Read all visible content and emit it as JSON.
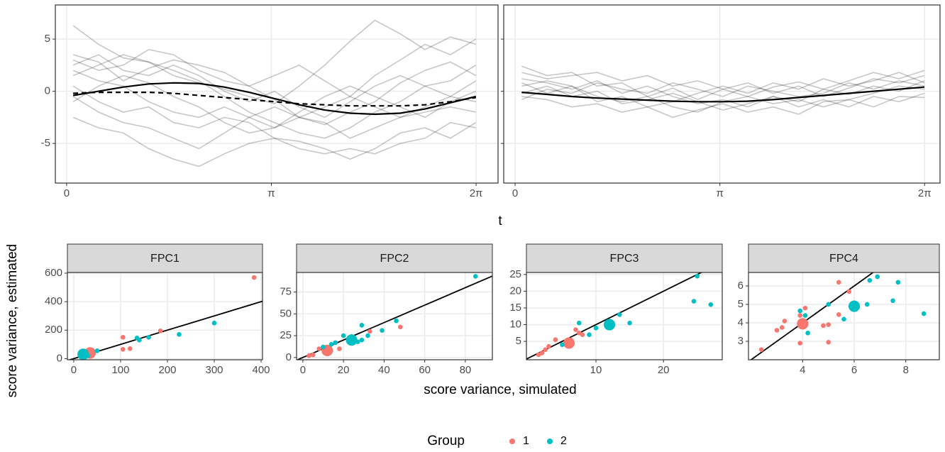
{
  "chart_data": [
    {
      "type": "line",
      "xlim": [
        -0.173,
        6.62
      ],
      "ylim": [
        -8.8,
        8.27
      ],
      "xticks": [
        0,
        {
          "value": 3.14159,
          "label": "π"
        },
        {
          "value": 6.28319,
          "label": "2π"
        }
      ],
      "yticks": [
        -5,
        0,
        5
      ],
      "show_ytick_labels": true,
      "grid": true,
      "x": [
        0.1,
        0.49,
        0.87,
        1.26,
        1.64,
        2.03,
        2.42,
        2.8,
        3.19,
        3.57,
        3.96,
        4.35,
        4.73,
        5.12,
        5.5,
        5.89,
        6.28
      ],
      "series": [
        {
          "color": "#000000",
          "opacity": 0.22,
          "dash": "solid",
          "values": [
            6.3,
            4.5,
            3.2,
            2.8,
            1.5,
            0.8,
            0.2,
            -0.5,
            -1.2,
            0.5,
            2.5,
            4.8,
            6.8,
            5.5,
            4.0,
            5.2,
            4.5
          ]
        },
        {
          "color": "#000000",
          "opacity": 0.22,
          "dash": "solid",
          "values": [
            3.5,
            2.8,
            1.0,
            2.2,
            3.0,
            2.5,
            1.8,
            0.5,
            -0.8,
            -2.5,
            -3.2,
            -2.0,
            -1.0,
            0.8,
            2.0,
            2.8,
            1.5
          ]
        },
        {
          "color": "#000000",
          "opacity": 0.22,
          "dash": "solid",
          "values": [
            -2.5,
            -3.5,
            -4.0,
            -5.5,
            -6.5,
            -7.2,
            -6.0,
            -5.0,
            -4.5,
            -4.8,
            -5.5,
            -6.5,
            -5.5,
            -4.0,
            -3.5,
            -4.5,
            -3.0
          ]
        },
        {
          "color": "#000000",
          "opacity": 0.22,
          "dash": "solid",
          "values": [
            1.5,
            2.5,
            3.5,
            2.8,
            2.0,
            1.0,
            -0.5,
            -2.0,
            -3.0,
            -4.0,
            -4.5,
            -3.5,
            -2.0,
            -1.0,
            0.5,
            1.0,
            2.5
          ]
        },
        {
          "color": "#000000",
          "opacity": 0.22,
          "dash": "solid",
          "values": [
            0.5,
            -1.0,
            -2.0,
            -1.5,
            -3.0,
            -3.5,
            -2.5,
            -3.0,
            -4.5,
            -5.5,
            -6.0,
            -5.5,
            -6.0,
            -5.0,
            -4.5,
            -3.0,
            -3.5
          ]
        },
        {
          "color": "#000000",
          "opacity": 0.22,
          "dash": "solid",
          "values": [
            2.0,
            1.0,
            0.5,
            -1.0,
            -2.0,
            -2.5,
            -1.5,
            -2.5,
            -3.5,
            -2.5,
            -1.5,
            -0.5,
            1.5,
            3.0,
            4.5,
            3.5,
            5.0
          ]
        },
        {
          "color": "#000000",
          "opacity": 0.22,
          "dash": "solid",
          "values": [
            -1.0,
            0.5,
            1.5,
            0.8,
            -0.5,
            -1.5,
            -3.0,
            -4.0,
            -3.5,
            -2.0,
            -0.5,
            0.5,
            -0.5,
            -1.5,
            -2.5,
            -1.0,
            0.0
          ]
        },
        {
          "color": "#000000",
          "opacity": 0.22,
          "dash": "solid",
          "values": [
            3.0,
            2.0,
            2.5,
            4.0,
            3.5,
            2.0,
            1.0,
            0.5,
            1.5,
            2.5,
            1.0,
            -0.5,
            -1.5,
            -2.5,
            -1.5,
            -0.5,
            1.0
          ]
        },
        {
          "color": "#000000",
          "opacity": 0.22,
          "dash": "solid",
          "values": [
            -0.5,
            -2.0,
            -3.0,
            -3.5,
            -4.5,
            -5.5,
            -4.0,
            -2.5,
            -1.5,
            -2.5,
            -3.0,
            -4.5,
            -3.5,
            -2.5,
            -2.0,
            -1.5,
            -2.0
          ]
        },
        {
          "color": "#000000",
          "opacity": 0.22,
          "dash": "solid",
          "values": [
            2.5,
            3.5,
            2.0,
            1.5,
            2.5,
            1.5,
            0.0,
            -1.0,
            0.0,
            -1.5,
            -2.5,
            -1.0,
            0.5,
            1.5,
            0.5,
            -0.5,
            -1.0
          ]
        },
        {
          "color": "#000000",
          "opacity": 1,
          "dash": "solid",
          "values": [
            -0.4,
            0,
            0.4,
            0.7,
            0.8,
            0.75,
            0.4,
            -0.1,
            -0.7,
            -1.3,
            -1.8,
            -2.1,
            -2.2,
            -2.1,
            -1.7,
            -1.1,
            -0.5
          ]
        },
        {
          "color": "#000000",
          "opacity": 1,
          "dash": "dashed",
          "values": [
            -0.2,
            -0.1,
            -0.1,
            -0.1,
            -0.2,
            -0.4,
            -0.6,
            -0.8,
            -1.0,
            -1.2,
            -1.3,
            -1.4,
            -1.4,
            -1.4,
            -1.3,
            -1.0,
            -0.6
          ]
        }
      ]
    },
    {
      "type": "line",
      "xlim": [
        -0.175,
        6.52
      ],
      "ylim": [
        -8.8,
        8.27
      ],
      "xticks": [
        0,
        {
          "value": 3.14159,
          "label": "π"
        },
        {
          "value": 6.28319,
          "label": "2π"
        }
      ],
      "yticks": [
        -5,
        0,
        5
      ],
      "show_ytick_labels": false,
      "grid": true,
      "x": [
        0.1,
        0.49,
        0.87,
        1.26,
        1.64,
        2.03,
        2.42,
        2.8,
        3.19,
        3.57,
        3.96,
        4.35,
        4.73,
        5.12,
        5.5,
        5.89,
        6.28
      ],
      "series": [
        {
          "color": "#000000",
          "opacity": 0.22,
          "dash": "solid",
          "values": [
            2.4,
            1.5,
            1.8,
            0.5,
            0.8,
            -0.5,
            0.3,
            -0.8,
            0.2,
            -0.5,
            0.4,
            0.9,
            0.2,
            1.0,
            1.8,
            1.2,
            2.0
          ]
        },
        {
          "color": "#000000",
          "opacity": 0.22,
          "dash": "solid",
          "values": [
            -0.5,
            -0.8,
            -1.5,
            -1.2,
            -2.0,
            -1.5,
            -2.5,
            -1.8,
            -1.2,
            -2.0,
            -1.5,
            -2.2,
            -1.0,
            -0.8,
            -1.5,
            -0.5,
            -0.6
          ]
        },
        {
          "color": "#000000",
          "opacity": 0.22,
          "dash": "solid",
          "values": [
            1.2,
            0.8,
            0.2,
            1.0,
            -0.2,
            0.5,
            -0.5,
            -1.2,
            -0.8,
            -1.5,
            -0.5,
            -1.0,
            0.2,
            -0.3,
            0.5,
            0.0,
            1.0
          ]
        },
        {
          "color": "#000000",
          "opacity": 0.22,
          "dash": "solid",
          "values": [
            0.5,
            1.0,
            0.5,
            -0.5,
            -1.0,
            -0.5,
            -1.5,
            -2.0,
            -1.0,
            -0.5,
            -1.2,
            -0.8,
            -1.5,
            -0.8,
            -0.2,
            0.5,
            0.2
          ]
        },
        {
          "color": "#000000",
          "opacity": 0.22,
          "dash": "solid",
          "values": [
            1.8,
            1.2,
            1.5,
            1.8,
            1.0,
            1.5,
            0.5,
            1.0,
            0.2,
            0.8,
            -0.2,
            0.5,
            -0.5,
            0.3,
            1.2,
            0.8,
            1.5
          ]
        },
        {
          "color": "#000000",
          "opacity": 0.22,
          "dash": "solid",
          "values": [
            -0.2,
            0.5,
            -0.5,
            0.0,
            -1.2,
            -0.8,
            -0.2,
            -1.0,
            -1.8,
            -1.2,
            -0.5,
            -1.5,
            -0.8,
            -1.5,
            -0.5,
            -1.0,
            -0.2
          ]
        },
        {
          "color": "#000000",
          "opacity": 0.22,
          "dash": "solid",
          "values": [
            0.8,
            -0.2,
            0.5,
            -1.0,
            -0.5,
            -1.5,
            -1.0,
            -0.2,
            0.5,
            -0.2,
            0.8,
            0.2,
            1.2,
            0.5,
            1.0,
            1.8,
            0.8
          ]
        },
        {
          "color": "#000000",
          "opacity": 0.22,
          "dash": "solid",
          "values": [
            -0.8,
            0.2,
            -0.2,
            0.8,
            0.2,
            -0.2,
            0.8,
            0.2,
            -0.5,
            0.5,
            0.0,
            -0.5,
            -0.2,
            0.8,
            0.2,
            1.0,
            0.5
          ]
        },
        {
          "color": "#000000",
          "opacity": 1,
          "dash": "solid",
          "values": [
            -0.1,
            -0.3,
            -0.5,
            -0.65,
            -0.75,
            -0.85,
            -0.95,
            -1.0,
            -1.0,
            -0.95,
            -0.8,
            -0.6,
            -0.4,
            -0.2,
            0,
            0.2,
            0.4
          ]
        }
      ]
    },
    {
      "type": "scatter",
      "title": "FPC1",
      "xlim": [
        -13.6,
        403
      ],
      "ylim": [
        -8,
        605
      ],
      "xticks": [
        0,
        100,
        200,
        300,
        400
      ],
      "yticks": [
        0,
        200,
        400,
        600
      ],
      "grid": true,
      "ref_line": {
        "slope": 1,
        "intercept": 0
      },
      "series": [
        {
          "name": "1",
          "color": "#F8766D",
          "x": [
            385,
            105,
            120,
            105,
            185,
            35
          ],
          "values": [
            570,
            150,
            70,
            65,
            195,
            40
          ],
          "sizes": [
            1,
            1,
            1,
            1,
            1,
            6
          ]
        },
        {
          "name": "2",
          "color": "#00BFC4",
          "x": [
            300,
            225,
            160,
            135,
            140,
            20,
            50,
            30
          ],
          "values": [
            250,
            170,
            150,
            145,
            130,
            30,
            55,
            20
          ],
          "sizes": [
            1,
            1,
            1,
            1,
            1,
            6,
            1,
            1
          ]
        }
      ]
    },
    {
      "type": "scatter",
      "title": "FPC2",
      "xlim": [
        -3.1,
        93.3
      ],
      "ylim": [
        -2.6,
        97.4
      ],
      "xticks": [
        0,
        20,
        40,
        60,
        80
      ],
      "yticks": [
        0,
        25,
        50,
        75
      ],
      "grid": true,
      "ref_line": {
        "slope": 1,
        "intercept": 0
      },
      "series": [
        {
          "name": "1",
          "color": "#F8766D",
          "x": [
            12,
            48,
            5,
            8,
            33,
            18,
            3
          ],
          "values": [
            8,
            35,
            3,
            10,
            30,
            10,
            2
          ],
          "sizes": [
            6,
            1,
            1,
            1,
            1,
            1,
            1
          ]
        },
        {
          "name": "2",
          "color": "#00BFC4",
          "x": [
            85,
            46,
            24,
            29,
            39,
            32,
            27,
            20,
            16,
            10,
            14,
            29
          ],
          "values": [
            93,
            42,
            20,
            37,
            31,
            25,
            18,
            25,
            17,
            12,
            15,
            20
          ],
          "sizes": [
            1,
            1,
            6,
            1,
            1,
            1,
            1,
            1,
            1,
            1,
            1,
            1
          ]
        }
      ]
    },
    {
      "type": "scatter",
      "title": "FPC3",
      "xlim": [
        -0.3,
        28.7
      ],
      "ylim": [
        -0.5,
        25.6
      ],
      "xticks": [
        10,
        20
      ],
      "yticks": [
        5,
        10,
        15,
        20,
        25
      ],
      "grid": true,
      "ref_line": {
        "slope": 1,
        "intercept": 0
      },
      "series": [
        {
          "name": "1",
          "color": "#F8766D",
          "x": [
            6,
            1.5,
            2.5,
            3,
            4,
            7,
            8,
            7.5,
            2
          ],
          "values": [
            4.5,
            1,
            2.5,
            3.5,
            5.5,
            8.5,
            7,
            7.5,
            1.5
          ],
          "sizes": [
            6,
            1,
            1,
            1,
            1,
            1,
            1,
            1,
            1
          ]
        },
        {
          "name": "2",
          "color": "#00BFC4",
          "x": [
            12,
            25,
            24.5,
            27,
            15,
            13.5,
            10,
            9,
            7.5,
            5
          ],
          "values": [
            10,
            24.5,
            17,
            16,
            10.5,
            13,
            9,
            7,
            10.5,
            4
          ],
          "sizes": [
            6,
            1,
            1,
            1,
            1,
            1,
            1,
            1,
            1,
            1
          ]
        }
      ]
    },
    {
      "type": "scatter",
      "title": "FPC4",
      "xlim": [
        1.9,
        9.3
      ],
      "ylim": [
        2.0,
        6.73
      ],
      "xticks": [
        4,
        6,
        8
      ],
      "yticks": [
        3,
        4,
        5,
        6
      ],
      "grid": true,
      "ref_line": {
        "slope": 1,
        "intercept": 0
      },
      "series": [
        {
          "name": "1",
          "color": "#F8766D",
          "x": [
            4,
            2.4,
            3,
            3.2,
            3.3,
            4.1,
            3.9,
            5,
            4.8,
            5,
            5.4,
            5.4,
            5.8,
            3.9
          ],
          "values": [
            3.95,
            2.55,
            3.6,
            3.75,
            4.1,
            4.8,
            2.9,
            2.95,
            3.85,
            3.9,
            4.45,
            6.2,
            5.7,
            4.4
          ],
          "sizes": [
            6,
            1,
            1,
            1,
            1,
            1,
            1,
            1,
            1,
            1,
            1,
            1,
            1,
            1
          ]
        },
        {
          "name": "2",
          "color": "#00BFC4",
          "x": [
            6,
            6.9,
            7.7,
            7.5,
            8.7,
            6.6,
            6.5,
            5.6,
            5,
            4.2,
            3.9,
            4.1
          ],
          "values": [
            4.9,
            6.5,
            6.2,
            5.2,
            4.5,
            6.3,
            5,
            4.2,
            5,
            3.45,
            4.65,
            4.4
          ],
          "sizes": [
            6,
            1,
            1,
            1,
            1,
            1,
            1,
            1,
            1,
            1,
            1,
            1
          ]
        }
      ]
    }
  ],
  "labels": {
    "top_x": "t",
    "bottom_x": "score variance, simulated",
    "bottom_y": "score variance, estimated",
    "legend_title": "Group"
  }
}
